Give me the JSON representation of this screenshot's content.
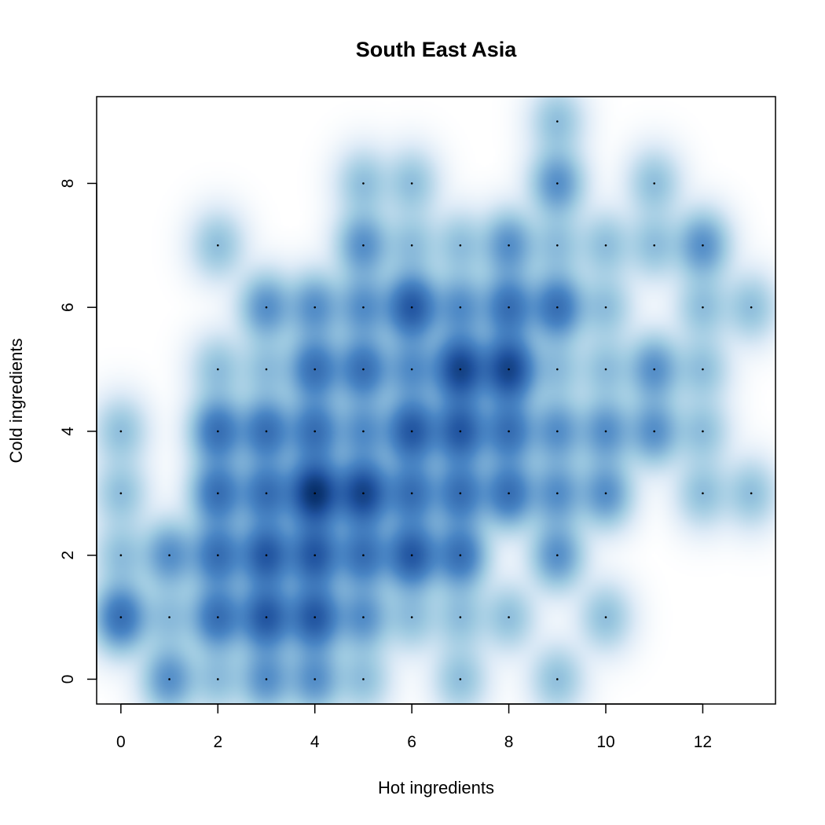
{
  "chart_data": {
    "type": "heatmap",
    "subtype": "smoothed-scatter",
    "title": "South East Asia",
    "xlabel": "Hot ingredients",
    "ylabel": "Cold ingredients",
    "xlim": [
      -0.5,
      13.5
    ],
    "ylim": [
      -0.4,
      9.4
    ],
    "xticks": [
      0,
      2,
      4,
      6,
      8,
      10,
      12
    ],
    "yticks": [
      0,
      2,
      4,
      6,
      8
    ],
    "grid": false,
    "legend": "none",
    "colors": {
      "low": "#ffffff",
      "high": "#08306b",
      "mid": "#4a86c5",
      "point": "#000000"
    },
    "points": [
      {
        "x": 1,
        "y": 0,
        "w": 2
      },
      {
        "x": 2,
        "y": 0,
        "w": 1
      },
      {
        "x": 3,
        "y": 0,
        "w": 2
      },
      {
        "x": 4,
        "y": 0,
        "w": 2
      },
      {
        "x": 5,
        "y": 0,
        "w": 1
      },
      {
        "x": 7,
        "y": 0,
        "w": 1
      },
      {
        "x": 9,
        "y": 0,
        "w": 1
      },
      {
        "x": 0,
        "y": 1,
        "w": 3
      },
      {
        "x": 1,
        "y": 1,
        "w": 1
      },
      {
        "x": 2,
        "y": 1,
        "w": 3
      },
      {
        "x": 3,
        "y": 1,
        "w": 4
      },
      {
        "x": 4,
        "y": 1,
        "w": 4
      },
      {
        "x": 5,
        "y": 1,
        "w": 2
      },
      {
        "x": 6,
        "y": 1,
        "w": 1
      },
      {
        "x": 7,
        "y": 1,
        "w": 1
      },
      {
        "x": 8,
        "y": 1,
        "w": 1
      },
      {
        "x": 10,
        "y": 1,
        "w": 1
      },
      {
        "x": 0,
        "y": 2,
        "w": 1
      },
      {
        "x": 1,
        "y": 2,
        "w": 2
      },
      {
        "x": 2,
        "y": 2,
        "w": 3
      },
      {
        "x": 3,
        "y": 2,
        "w": 4
      },
      {
        "x": 4,
        "y": 2,
        "w": 4
      },
      {
        "x": 5,
        "y": 2,
        "w": 3
      },
      {
        "x": 6,
        "y": 2,
        "w": 4
      },
      {
        "x": 7,
        "y": 2,
        "w": 3
      },
      {
        "x": 9,
        "y": 2,
        "w": 2
      },
      {
        "x": 0,
        "y": 3,
        "w": 1
      },
      {
        "x": 2,
        "y": 3,
        "w": 3
      },
      {
        "x": 3,
        "y": 3,
        "w": 3
      },
      {
        "x": 4,
        "y": 3,
        "w": 6
      },
      {
        "x": 5,
        "y": 3,
        "w": 5
      },
      {
        "x": 6,
        "y": 3,
        "w": 3
      },
      {
        "x": 7,
        "y": 3,
        "w": 3
      },
      {
        "x": 8,
        "y": 3,
        "w": 3
      },
      {
        "x": 9,
        "y": 3,
        "w": 2
      },
      {
        "x": 10,
        "y": 3,
        "w": 2
      },
      {
        "x": 12,
        "y": 3,
        "w": 1
      },
      {
        "x": 13,
        "y": 3,
        "w": 1
      },
      {
        "x": 0,
        "y": 4,
        "w": 1
      },
      {
        "x": 2,
        "y": 4,
        "w": 3
      },
      {
        "x": 3,
        "y": 4,
        "w": 3
      },
      {
        "x": 4,
        "y": 4,
        "w": 3
      },
      {
        "x": 5,
        "y": 4,
        "w": 2
      },
      {
        "x": 6,
        "y": 4,
        "w": 4
      },
      {
        "x": 7,
        "y": 4,
        "w": 4
      },
      {
        "x": 8,
        "y": 4,
        "w": 3
      },
      {
        "x": 9,
        "y": 4,
        "w": 2
      },
      {
        "x": 10,
        "y": 4,
        "w": 2
      },
      {
        "x": 11,
        "y": 4,
        "w": 2
      },
      {
        "x": 12,
        "y": 4,
        "w": 1
      },
      {
        "x": 2,
        "y": 5,
        "w": 1
      },
      {
        "x": 3,
        "y": 5,
        "w": 1
      },
      {
        "x": 4,
        "y": 5,
        "w": 3
      },
      {
        "x": 5,
        "y": 5,
        "w": 3
      },
      {
        "x": 6,
        "y": 5,
        "w": 2
      },
      {
        "x": 7,
        "y": 5,
        "w": 5
      },
      {
        "x": 8,
        "y": 5,
        "w": 5
      },
      {
        "x": 9,
        "y": 5,
        "w": 1
      },
      {
        "x": 10,
        "y": 5,
        "w": 1
      },
      {
        "x": 11,
        "y": 5,
        "w": 2
      },
      {
        "x": 12,
        "y": 5,
        "w": 1
      },
      {
        "x": 3,
        "y": 6,
        "w": 2
      },
      {
        "x": 4,
        "y": 6,
        "w": 2
      },
      {
        "x": 5,
        "y": 6,
        "w": 2
      },
      {
        "x": 6,
        "y": 6,
        "w": 4
      },
      {
        "x": 7,
        "y": 6,
        "w": 2
      },
      {
        "x": 8,
        "y": 6,
        "w": 3
      },
      {
        "x": 9,
        "y": 6,
        "w": 3
      },
      {
        "x": 10,
        "y": 6,
        "w": 1
      },
      {
        "x": 12,
        "y": 6,
        "w": 1
      },
      {
        "x": 13,
        "y": 6,
        "w": 1
      },
      {
        "x": 2,
        "y": 7,
        "w": 1
      },
      {
        "x": 5,
        "y": 7,
        "w": 2
      },
      {
        "x": 6,
        "y": 7,
        "w": 1
      },
      {
        "x": 7,
        "y": 7,
        "w": 1
      },
      {
        "x": 8,
        "y": 7,
        "w": 2
      },
      {
        "x": 9,
        "y": 7,
        "w": 1
      },
      {
        "x": 10,
        "y": 7,
        "w": 1
      },
      {
        "x": 11,
        "y": 7,
        "w": 1
      },
      {
        "x": 12,
        "y": 7,
        "w": 2
      },
      {
        "x": 5,
        "y": 8,
        "w": 1
      },
      {
        "x": 6,
        "y": 8,
        "w": 1
      },
      {
        "x": 9,
        "y": 8,
        "w": 2
      },
      {
        "x": 11,
        "y": 8,
        "w": 1
      },
      {
        "x": 9,
        "y": 9,
        "w": 1
      }
    ]
  }
}
